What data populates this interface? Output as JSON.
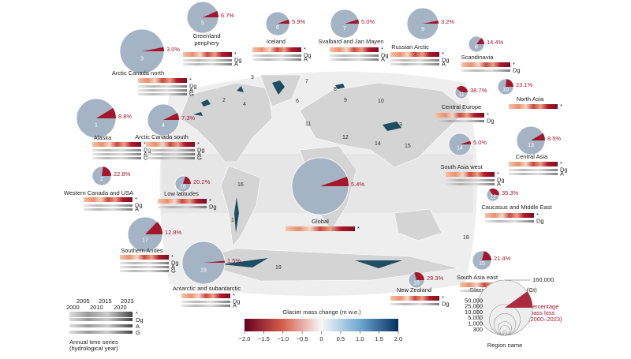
{
  "regions": [
    {
      "number": 1,
      "name": "Alaska",
      "loss": 8.8,
      "loss_label": "8.8%",
      "rows": [
        "*",
        "Dg",
        "A",
        "G"
      ]
    },
    {
      "number": 2,
      "name": "Western Canada and USA",
      "loss": 22.8,
      "loss_label": "22.8%",
      "rows": [
        "*",
        "Dg",
        "A"
      ]
    },
    {
      "number": 3,
      "name": "Arctic Canada north",
      "loss": 3.0,
      "loss_label": "3.0%",
      "rows": [
        "*",
        "Dg",
        "A",
        "G"
      ]
    },
    {
      "number": 4,
      "name": "Arctic Canada south",
      "loss": 7.3,
      "loss_label": "7.3%",
      "rows": [
        "*",
        "Dg",
        "A",
        "G"
      ]
    },
    {
      "number": 5,
      "name": "Greenland periphery",
      "loss": 6.7,
      "loss_label": "6.7%",
      "rows": [
        "*",
        "Dg",
        "A"
      ]
    },
    {
      "number": 6,
      "name": "Iceland",
      "loss": 5.9,
      "loss_label": "5.9%",
      "rows": [
        "*",
        "Dg",
        "A"
      ]
    },
    {
      "number": 7,
      "name": "Svalbard and Jan Mayen",
      "loss": 5.0,
      "loss_label": "5.0%",
      "rows": [
        "*",
        "Dg",
        "A"
      ]
    },
    {
      "number": 8,
      "name": "Scandinavia",
      "loss": 14.4,
      "loss_label": "14.4%",
      "rows": [
        "*",
        "Dg"
      ]
    },
    {
      "number": 9,
      "name": "Russian Arctic",
      "loss": 3.2,
      "loss_label": "3.2%",
      "rows": [
        "*",
        "Dg",
        "A"
      ]
    },
    {
      "number": 10,
      "name": "North Asia",
      "loss": 23.1,
      "loss_label": "23.1%",
      "rows": [
        "*"
      ]
    },
    {
      "number": 11,
      "name": "Central Europe",
      "loss": 38.7,
      "loss_label": "38.7%",
      "rows": [
        "*",
        "Dg"
      ]
    },
    {
      "number": 12,
      "name": "Caucasus and Middle East",
      "loss": 35.3,
      "loss_label": "35.3%",
      "rows": [
        "*",
        "Dg"
      ]
    },
    {
      "number": 13,
      "name": "Central Asia",
      "loss": 8.5,
      "loss_label": "8.5%",
      "rows": [
        "*",
        "Dg",
        "A"
      ]
    },
    {
      "number": 14,
      "name": "South Asia west",
      "loss": 5.0,
      "loss_label": "5.0%",
      "rows": [
        "*",
        "Dg",
        "A"
      ]
    },
    {
      "number": 15,
      "name": "South Asia east",
      "loss": 21.4,
      "loss_label": "21.4%",
      "rows": [
        "*",
        "Dg"
      ]
    },
    {
      "number": 16,
      "name": "Low latitudes",
      "loss": 20.2,
      "loss_label": "20.2%",
      "rows": [
        "*",
        "Dg"
      ]
    },
    {
      "number": 17,
      "name": "Southern Andes",
      "loss": 12.8,
      "loss_label": "12.8%",
      "rows": [
        "*",
        "Dg",
        "A",
        "G"
      ]
    },
    {
      "number": 18,
      "name": "New Zealand",
      "loss": 29.3,
      "loss_label": "29.3%",
      "rows": [
        "*",
        "Dg"
      ]
    },
    {
      "number": 19,
      "name": "Antarctic and subantarctic",
      "loss": 1.5,
      "loss_label": "1.5%",
      "rows": [
        "*",
        "Dg",
        "A"
      ]
    }
  ],
  "global": {
    "name": "Global",
    "loss": 5.4,
    "loss_label": "5.4%",
    "rows": [
      "*"
    ]
  },
  "colorbar": {
    "title": "Glacier mass change (m w.e.)",
    "range": [
      -2,
      2
    ],
    "ticks": [
      {
        "value": -2,
        "label": "−2.0"
      },
      {
        "value": -1.5,
        "label": "−1.5"
      },
      {
        "value": -1,
        "label": "−1.0"
      },
      {
        "value": -0.5,
        "label": "−0.5"
      },
      0,
      0.5,
      {
        "value": 1,
        "label": "1.0"
      },
      1.5,
      {
        "value": 2,
        "label": "2.0"
      }
    ]
  },
  "size_legend": {
    "title": "Glacier mass in 2000 (Gt)",
    "values": [
      {
        "value": 160000,
        "label": "160,000"
      },
      {
        "value": 50000,
        "label": "50,000"
      },
      {
        "value": 25000,
        "label": "25,000"
      },
      {
        "value": 10000,
        "label": "10,000"
      },
      {
        "value": 5000,
        "label": "5,000"
      },
      {
        "value": 1000,
        "label": "1,000"
      },
      300
    ],
    "loss_note": [
      "Percentage",
      "mass loss",
      "(2000–2023)"
    ],
    "region_note": "Region name"
  },
  "time_legend": {
    "years_top": [
      2005,
      2015,
      2023
    ],
    "years_bottom": [
      2000,
      2010,
      2020
    ],
    "rows": [
      "*",
      "Dg",
      "A",
      "G"
    ],
    "note": [
      "Annual time series",
      "(hydrological year)"
    ]
  }
}
